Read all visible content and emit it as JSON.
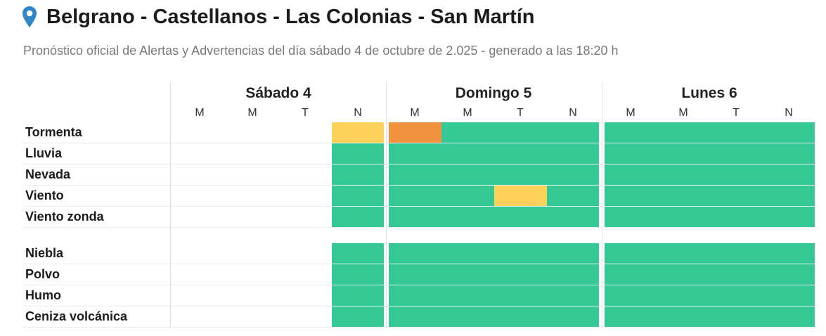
{
  "header": {
    "title": "Belgrano - Castellanos - Las Colonias - San Martín",
    "subtitle": "Pronóstico oficial de Alertas y Advertencias del día sábado 4 de octubre de 2.025 - generado a las 18:20 h",
    "pin_color": "#2f86c8"
  },
  "legend_colors": {
    "none": "#ffffff",
    "green": "#34c894",
    "yellow": "#fdd25a",
    "orange": "#f0923e"
  },
  "days": [
    {
      "label": "Sábado 4",
      "periods": [
        "M",
        "M",
        "T",
        "N"
      ]
    },
    {
      "label": "Domingo 5",
      "periods": [
        "M",
        "M",
        "T",
        "N"
      ]
    },
    {
      "label": "Lunes 6",
      "periods": [
        "M",
        "M",
        "T",
        "N"
      ]
    }
  ],
  "rows": [
    {
      "label": "Tormenta",
      "levels": [
        "none",
        "none",
        "none",
        "yellow",
        "orange",
        "green",
        "green",
        "green",
        "green",
        "green",
        "green",
        "green"
      ]
    },
    {
      "label": "Lluvia",
      "levels": [
        "none",
        "none",
        "none",
        "green",
        "green",
        "green",
        "green",
        "green",
        "green",
        "green",
        "green",
        "green"
      ]
    },
    {
      "label": "Nevada",
      "levels": [
        "none",
        "none",
        "none",
        "green",
        "green",
        "green",
        "green",
        "green",
        "green",
        "green",
        "green",
        "green"
      ]
    },
    {
      "label": "Viento",
      "levels": [
        "none",
        "none",
        "none",
        "green",
        "green",
        "green",
        "yellow",
        "green",
        "green",
        "green",
        "green",
        "green"
      ]
    },
    {
      "label": "Viento zonda",
      "levels": [
        "none",
        "none",
        "none",
        "green",
        "green",
        "green",
        "green",
        "green",
        "green",
        "green",
        "green",
        "green"
      ]
    },
    {
      "label": "Niebla",
      "levels": [
        "none",
        "none",
        "none",
        "green",
        "green",
        "green",
        "green",
        "green",
        "green",
        "green",
        "green",
        "green"
      ]
    },
    {
      "label": "Polvo",
      "levels": [
        "none",
        "none",
        "none",
        "green",
        "green",
        "green",
        "green",
        "green",
        "green",
        "green",
        "green",
        "green"
      ]
    },
    {
      "label": "Humo",
      "levels": [
        "none",
        "none",
        "none",
        "green",
        "green",
        "green",
        "green",
        "green",
        "green",
        "green",
        "green",
        "green"
      ]
    },
    {
      "label": "Ceniza volcánica",
      "levels": [
        "none",
        "none",
        "none",
        "green",
        "green",
        "green",
        "green",
        "green",
        "green",
        "green",
        "green",
        "green"
      ]
    }
  ]
}
